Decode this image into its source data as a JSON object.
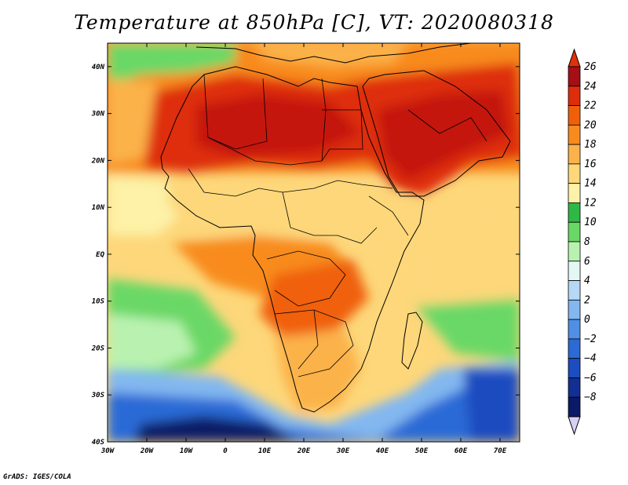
{
  "title": "Temperature at 850hPa [C], VT: 2020080318",
  "credit": "GrADS: IGES/COLA",
  "map": {
    "lon_range": [
      -30,
      75
    ],
    "lat_range": [
      -40,
      45
    ],
    "x_ticks": [
      {
        "lon": -30,
        "label": "30W"
      },
      {
        "lon": -20,
        "label": "20W"
      },
      {
        "lon": -10,
        "label": "10W"
      },
      {
        "lon": 0,
        "label": "0"
      },
      {
        "lon": 10,
        "label": "10E"
      },
      {
        "lon": 20,
        "label": "20E"
      },
      {
        "lon": 30,
        "label": "30E"
      },
      {
        "lon": 40,
        "label": "40E"
      },
      {
        "lon": 50,
        "label": "50E"
      },
      {
        "lon": 60,
        "label": "60E"
      },
      {
        "lon": 70,
        "label": "70E"
      }
    ],
    "y_ticks": [
      {
        "lat": 40,
        "label": "40N"
      },
      {
        "lat": 30,
        "label": "30N"
      },
      {
        "lat": 20,
        "label": "20N"
      },
      {
        "lat": 10,
        "label": "10N"
      },
      {
        "lat": 0,
        "label": "EQ"
      },
      {
        "lat": -10,
        "label": "10S"
      },
      {
        "lat": -20,
        "label": "20S"
      },
      {
        "lat": -30,
        "label": "30S"
      },
      {
        "lat": -40,
        "label": "40S"
      }
    ]
  },
  "colorbar": {
    "levels": [
      {
        "label": "26",
        "color": "#a50f15"
      },
      {
        "label": "24",
        "color": "#de2d0c"
      },
      {
        "label": "22",
        "color": "#f0600a"
      },
      {
        "label": "20",
        "color": "#f88b1e"
      },
      {
        "label": "18",
        "color": "#fbb24a"
      },
      {
        "label": "16",
        "color": "#fdd77a"
      },
      {
        "label": "14",
        "color": "#fdf2a8"
      },
      {
        "label": "12",
        "color": "#2fb845"
      },
      {
        "label": "10",
        "color": "#6ad866"
      },
      {
        "label": "8",
        "color": "#b9f2b0"
      },
      {
        "label": "6",
        "color": "#e3f7f5"
      },
      {
        "label": "4",
        "color": "#b5d8f7"
      },
      {
        "label": "2",
        "color": "#82b7f0"
      },
      {
        "label": "0",
        "color": "#4f8fe6"
      },
      {
        "label": "−2",
        "color": "#2c6ad6"
      },
      {
        "label": "−4",
        "color": "#1b4cc0"
      },
      {
        "label": "−6",
        "color": "#122f93"
      },
      {
        "label": "−8",
        "color": "#0a1a66"
      }
    ],
    "over_color": "#e0300a",
    "under_color": "#d6d0f5"
  }
}
